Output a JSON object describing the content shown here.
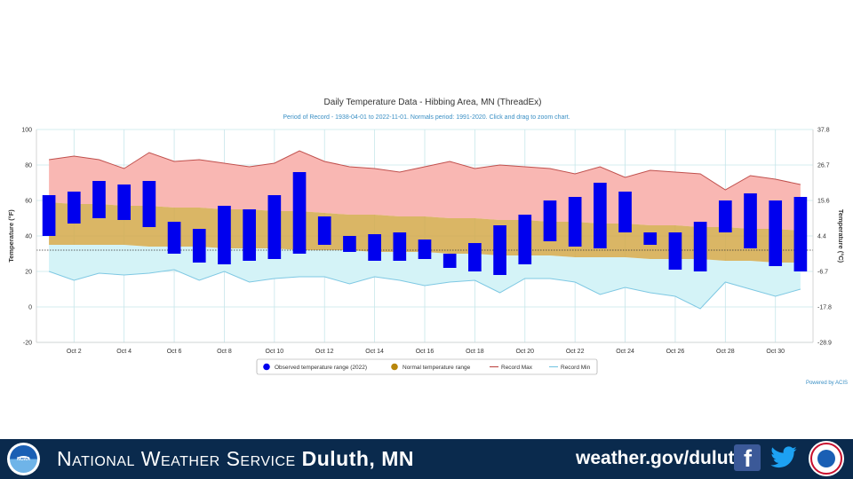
{
  "chart_data": {
    "type": "floating-bar",
    "title": "Daily Temperature Data - Hibbing Area, MN (ThreadEx)",
    "subtitle": "Period of Record - 1938-04-01 to 2022-11-01. Normals period: 1991-2020. Click and drag to zoom chart.",
    "ylabel_left": "Temperature (°F)",
    "ylabel_right": "Temperature (°C)",
    "credit": "Powered by ACIS",
    "ylim": [
      -20,
      100
    ],
    "yticks_left": [
      -20,
      0,
      20,
      40,
      60,
      80,
      100
    ],
    "yticks_right": [
      "-28.9",
      "-17.8",
      "-6.7",
      "4.4",
      "15.6",
      "26.7",
      "37.8"
    ],
    "x_tick_labels": [
      "Oct 2",
      "Oct 4",
      "Oct 6",
      "Oct 8",
      "Oct 10",
      "Oct 12",
      "Oct 14",
      "Oct 16",
      "Oct 18",
      "Oct 20",
      "Oct 22",
      "Oct 24",
      "Oct 26",
      "Oct 28",
      "Oct 30"
    ],
    "x_tick_days": [
      2,
      4,
      6,
      8,
      10,
      12,
      14,
      16,
      18,
      20,
      22,
      24,
      26,
      28,
      30
    ],
    "days": [
      1,
      2,
      3,
      4,
      5,
      6,
      7,
      8,
      9,
      10,
      11,
      12,
      13,
      14,
      15,
      16,
      17,
      18,
      19,
      20,
      21,
      22,
      23,
      24,
      25,
      26,
      27,
      28,
      29,
      30,
      31
    ],
    "observed_high": [
      63,
      65,
      71,
      69,
      71,
      48,
      44,
      57,
      55,
      63,
      76,
      51,
      40,
      41,
      42,
      38,
      30,
      36,
      46,
      52,
      60,
      62,
      70,
      65,
      42,
      42,
      48,
      60,
      64,
      60,
      62
    ],
    "observed_low": [
      40,
      47,
      50,
      49,
      45,
      30,
      25,
      24,
      26,
      27,
      30,
      35,
      31,
      26,
      26,
      27,
      22,
      20,
      18,
      24,
      37,
      34,
      33,
      42,
      35,
      21,
      20,
      42,
      33,
      23,
      20
    ],
    "normal_high": [
      59,
      58,
      58,
      57,
      57,
      56,
      56,
      55,
      55,
      54,
      54,
      53,
      52,
      52,
      51,
      51,
      50,
      50,
      49,
      49,
      48,
      48,
      47,
      47,
      46,
      46,
      45,
      45,
      44,
      44,
      43
    ],
    "normal_low": [
      35,
      35,
      35,
      35,
      34,
      34,
      34,
      33,
      33,
      33,
      32,
      32,
      32,
      31,
      31,
      31,
      30,
      30,
      29,
      29,
      29,
      28,
      28,
      28,
      27,
      27,
      27,
      26,
      26,
      25,
      25
    ],
    "record_max": [
      83,
      85,
      83,
      78,
      87,
      82,
      83,
      81,
      79,
      81,
      88,
      82,
      79,
      78,
      76,
      79,
      82,
      78,
      80,
      79,
      78,
      75,
      79,
      73,
      77,
      76,
      75,
      66,
      74,
      72,
      69
    ],
    "record_min": [
      20,
      15,
      19,
      18,
      19,
      21,
      15,
      20,
      14,
      16,
      17,
      17,
      13,
      17,
      15,
      12,
      14,
      15,
      8,
      16,
      16,
      14,
      7,
      11,
      8,
      6,
      -1,
      14,
      10,
      6,
      10
    ],
    "legend": [
      {
        "label": "Observed temperature range (2022)",
        "color": "#0000ee",
        "shape": "dot"
      },
      {
        "label": "Normal temperature range",
        "color": "#b8860b",
        "shape": "dot"
      },
      {
        "label": "Record Max",
        "color": "#c0504d",
        "shape": "line"
      },
      {
        "label": "Record Min",
        "color": "#7ec8e3",
        "shape": "line"
      }
    ],
    "colors": {
      "observed": "#0000ee",
      "normal_fill": "#d4a94a",
      "record_max_fill": "#f9b7b3",
      "record_max_line": "#c0504d",
      "record_min_fill": "#d4f3f7",
      "record_min_line": "#7ec8e3",
      "grid": "#c7e6ea"
    },
    "grid": true,
    "legend_position": "bottom-center"
  },
  "footer": {
    "logo_noaa": "NOAA",
    "title_prefix": "National Weather Service",
    "title_city": "Duluth, MN",
    "url": "weather.gov/duluth",
    "icons": [
      "facebook-icon",
      "twitter-icon",
      "nws-logo"
    ],
    "background": "#0a2a4d"
  }
}
